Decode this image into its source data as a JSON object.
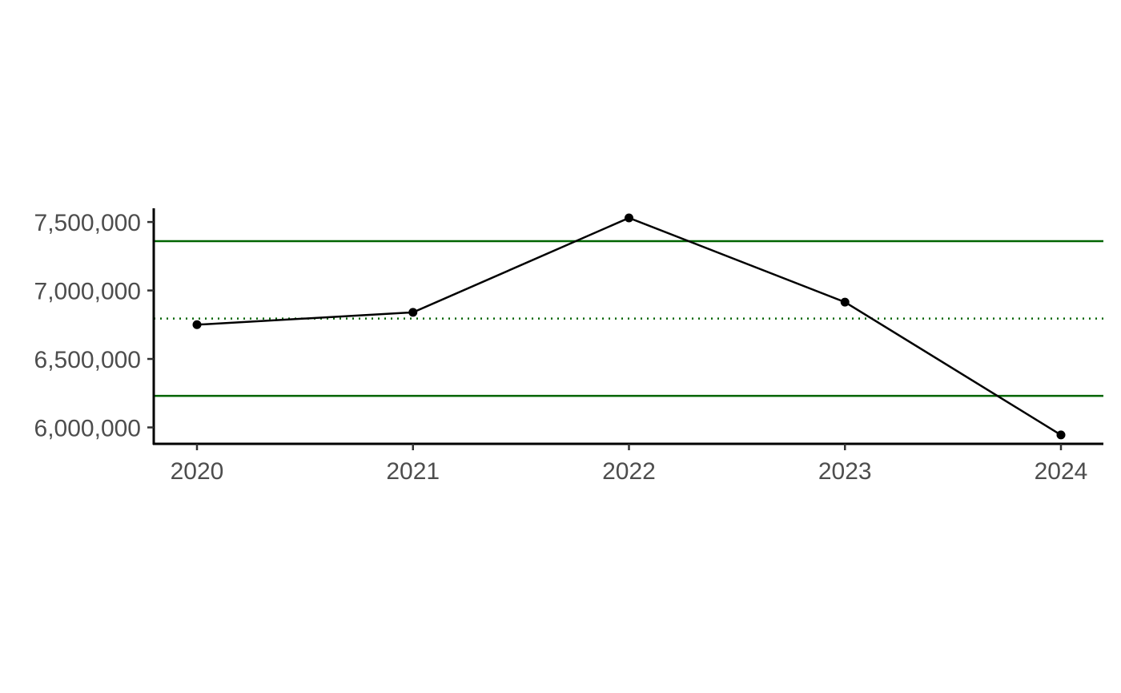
{
  "chart_data": {
    "type": "line",
    "title": "",
    "xlabel": "",
    "ylabel": "",
    "x": [
      "2020",
      "2021",
      "2022",
      "2023",
      "2024"
    ],
    "series": [
      {
        "values": [
          6750000,
          6840000,
          7530000,
          6915000,
          5945000
        ],
        "color": "#000000"
      }
    ],
    "reference_lines": [
      {
        "kind": "upper-limit",
        "value": 7360000,
        "color": "#006400",
        "style": "solid"
      },
      {
        "kind": "mean",
        "value": 6795000,
        "color": "#006400",
        "style": "dotted"
      },
      {
        "kind": "lower-limit",
        "value": 6230000,
        "color": "#006400",
        "style": "solid"
      }
    ],
    "yticks": [
      {
        "value": 6000000,
        "label": "6,000,000"
      },
      {
        "value": 6500000,
        "label": "6,500,000"
      },
      {
        "value": 7000000,
        "label": "7,000,000"
      },
      {
        "value": 7500000,
        "label": "7,500,000"
      }
    ],
    "ylim": [
      5880000,
      7600000
    ],
    "grid": false,
    "legend": "none"
  }
}
